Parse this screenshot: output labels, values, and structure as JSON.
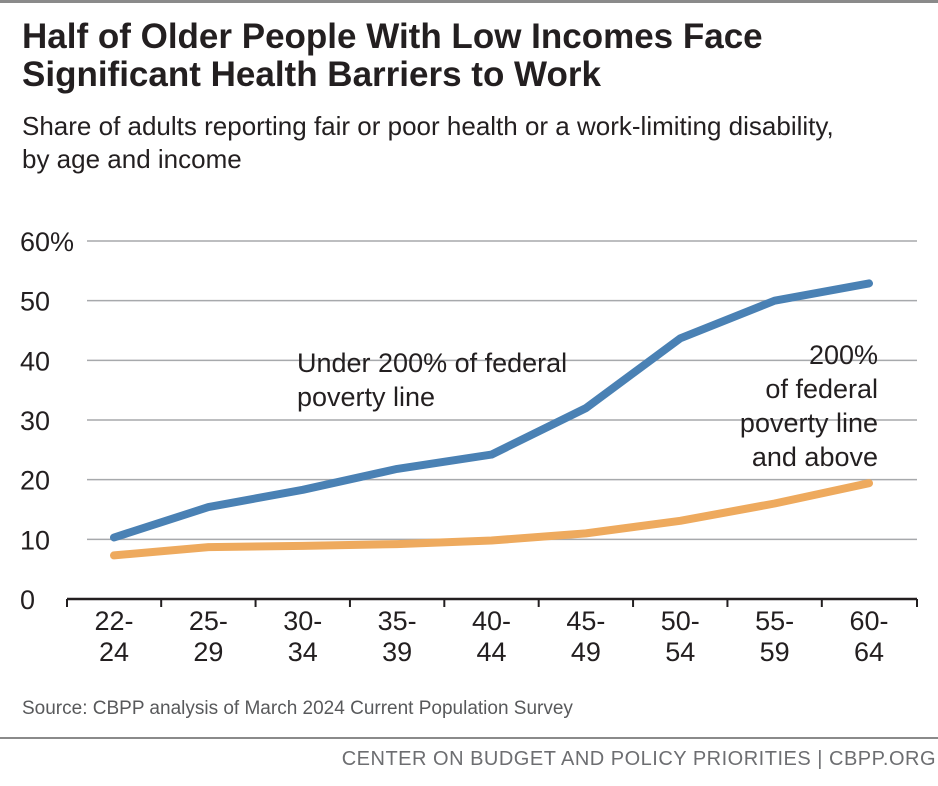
{
  "title_lines": [
    "Half of Older People With Low Incomes Face",
    "Significant Health Barriers to Work"
  ],
  "subtitle_lines": [
    "Share of adults reporting fair or poor health or a work-limiting disability,",
    "by age and income"
  ],
  "source": "Source: CBPP analysis of March 2024 Current Population Survey",
  "footer": "CENTER ON BUDGET AND POLICY PRIORITIES | CBPP.ORG",
  "chart_data": {
    "type": "line",
    "categories": [
      [
        "22-",
        "24"
      ],
      [
        "25-",
        "29"
      ],
      [
        "30-",
        "34"
      ],
      [
        "35-",
        "39"
      ],
      [
        "40-",
        "44"
      ],
      [
        "45-",
        "49"
      ],
      [
        "50-",
        "54"
      ],
      [
        "55-",
        "59"
      ],
      [
        "60-",
        "64"
      ]
    ],
    "y_ticks": [
      "60%",
      "50",
      "40",
      "30",
      "20",
      "10",
      "0"
    ],
    "y_tick_values": [
      60,
      50,
      40,
      30,
      20,
      10,
      0
    ],
    "ylim": [
      0,
      60
    ],
    "grid": true,
    "series": [
      {
        "name": "Under 200% of federal poverty line",
        "label_lines": [
          "Under 200% of federal",
          "poverty line"
        ],
        "color": "#4a81b4",
        "values": [
          10.3,
          15.4,
          18.3,
          21.8,
          24.2,
          32.0,
          43.7,
          50.0,
          52.9
        ]
      },
      {
        "name": "200% of federal poverty line and above",
        "label_lines": [
          "200%",
          "of federal",
          "poverty line",
          "and above"
        ],
        "color": "#eeaa5e",
        "values": [
          7.3,
          8.7,
          8.9,
          9.2,
          9.8,
          11.0,
          13.1,
          16.0,
          19.4
        ]
      }
    ]
  }
}
